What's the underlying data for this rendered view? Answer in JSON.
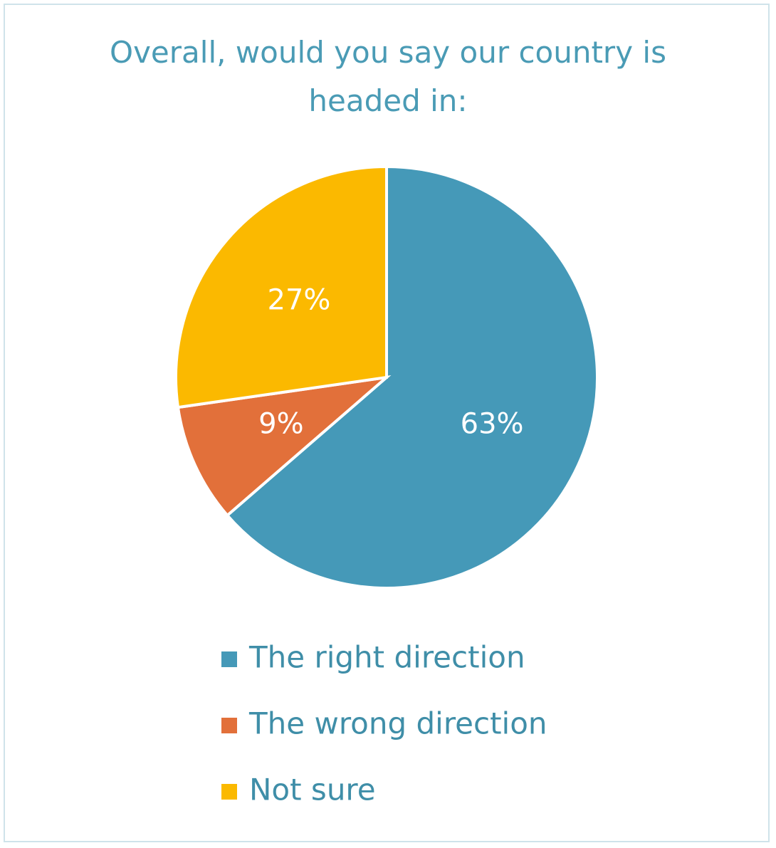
{
  "chart_data": {
    "type": "pie",
    "title": "Overall, would you say our country is headed in:",
    "categories": [
      "The right direction",
      "The wrong direction",
      "Not sure"
    ],
    "values": [
      63,
      9,
      27
    ],
    "value_labels": [
      "63%",
      "9%",
      "27%"
    ],
    "colors": [
      "#4599b8",
      "#e2703a",
      "#fbb900"
    ],
    "legend": "bottom"
  }
}
